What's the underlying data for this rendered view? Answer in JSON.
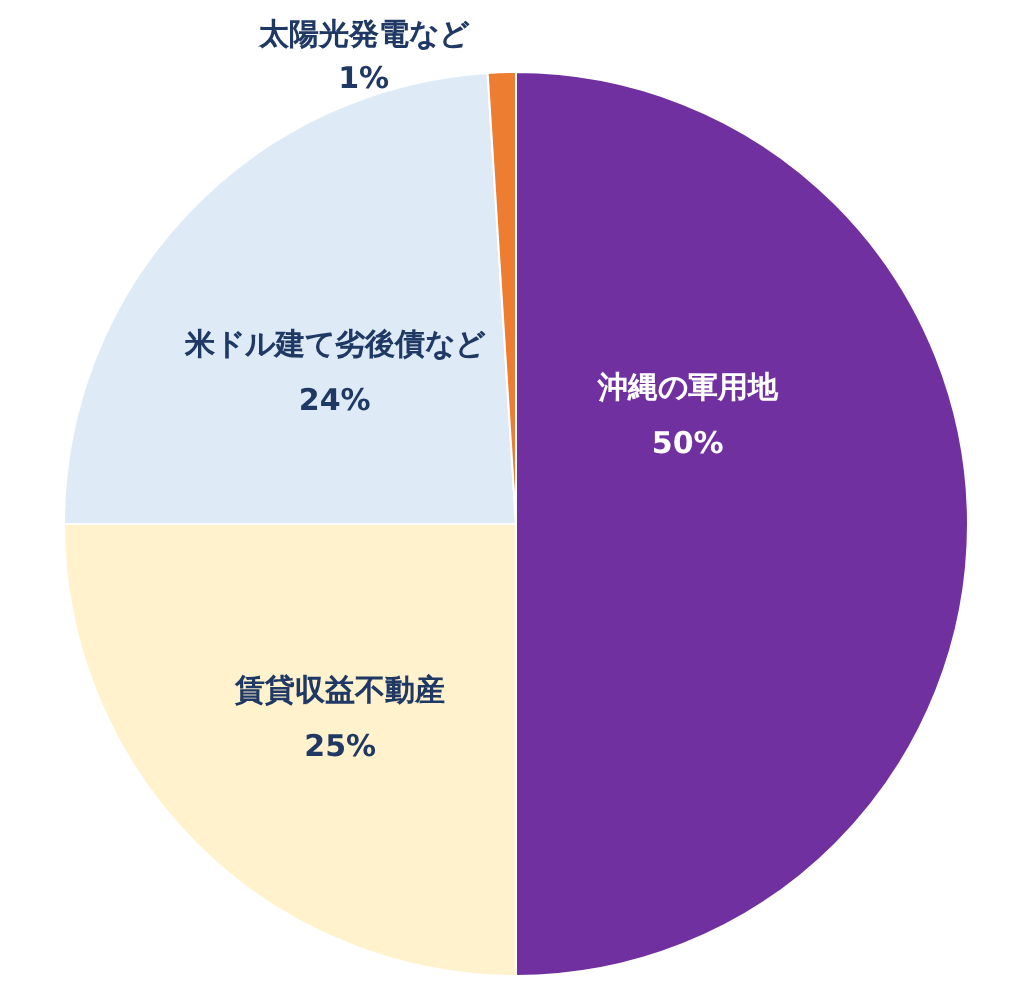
{
  "chart_data": {
    "type": "pie",
    "categories": [
      "沖縄の軍用地",
      "賃貸収益不動産",
      "米ドル建て劣後債など",
      "太陽光発電など"
    ],
    "values": [
      50,
      25,
      24,
      1
    ],
    "value_labels": [
      "50%",
      "25%",
      "24%",
      "1%"
    ],
    "colors": [
      "#7030a0",
      "#fff2cc",
      "#deebf7",
      "#ed7d31"
    ]
  }
}
